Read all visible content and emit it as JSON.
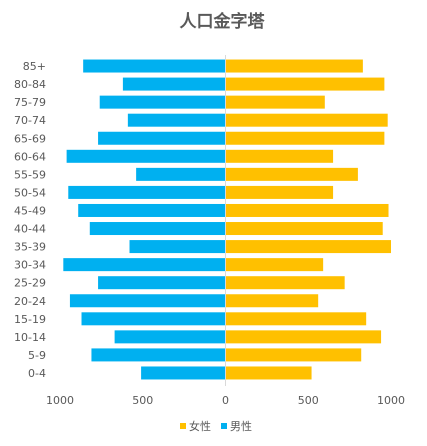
{
  "chart_data": {
    "type": "bar",
    "orientation": "horizontal",
    "title": "人口金字塔",
    "categories": [
      "85+",
      "80-84",
      "75-79",
      "70-74",
      "65-69",
      "60-64",
      "55-59",
      "50-54",
      "45-49",
      "40-44",
      "35-39",
      "30-34",
      "25-29",
      "20-24",
      "15-19",
      "10-14",
      "5-9",
      "0-4"
    ],
    "series": [
      {
        "name": "女性",
        "color": "#FFC000",
        "values": [
          830,
          960,
          600,
          980,
          960,
          650,
          800,
          650,
          985,
          950,
          1000,
          590,
          720,
          560,
          850,
          940,
          820,
          520
        ]
      },
      {
        "name": "男性",
        "color": "#00B0F0",
        "values": [
          860,
          620,
          760,
          590,
          770,
          960,
          540,
          950,
          890,
          820,
          580,
          980,
          770,
          940,
          870,
          670,
          810,
          510
        ]
      }
    ],
    "xlim": [
      -1000,
      1000
    ],
    "x_ticks": [
      -1000,
      -500,
      0,
      500,
      1000
    ],
    "x_tick_labels": [
      "1000",
      "500",
      "0",
      "500",
      "1000"
    ],
    "legend_position": "bottom",
    "grid": false
  }
}
